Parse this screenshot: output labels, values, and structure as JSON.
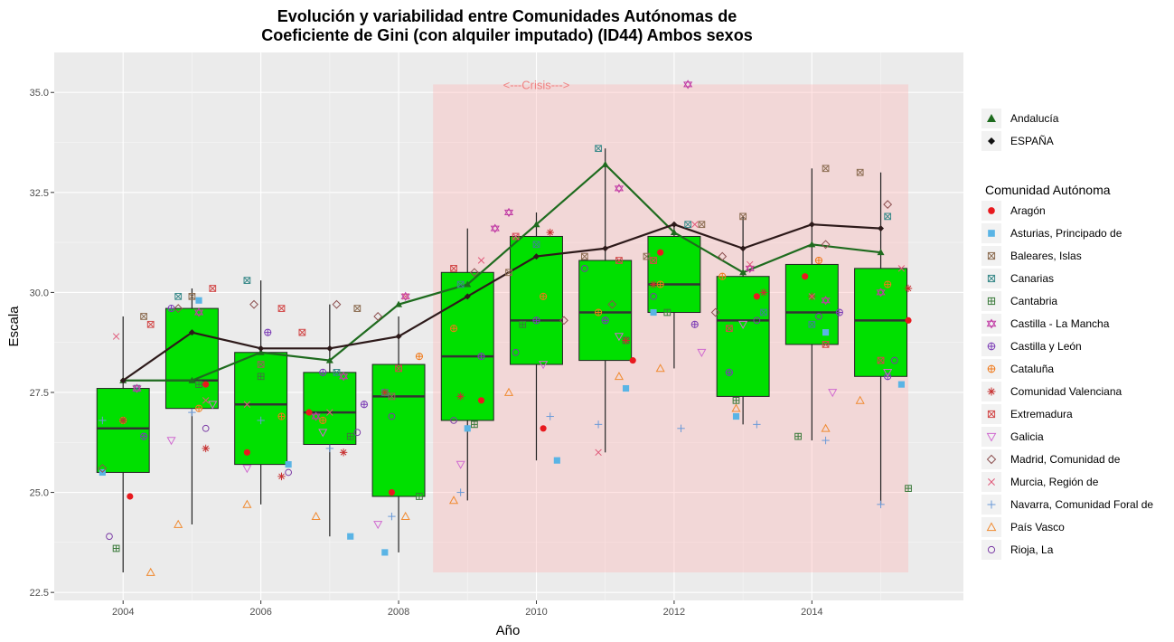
{
  "chart_data": {
    "type": "boxplot",
    "title": [
      "Evolución y variabilidad entre Comunidades Autónomas de",
      "Coeficiente de Gini (con alquiler imputado) (ID44) Ambos sexos"
    ],
    "xlabel": "Año",
    "ylabel": "Escala",
    "xlim": [
      2003.0,
      2016.2
    ],
    "ylim": [
      22.3,
      36.0
    ],
    "x_ticks": [
      2004,
      2006,
      2008,
      2010,
      2012,
      2014
    ],
    "y_ticks": [
      22.5,
      25.0,
      27.5,
      30.0,
      32.5,
      35.0
    ],
    "y_tick_labels": [
      "22.5",
      "25.0",
      "27.5",
      "30.0",
      "32.5",
      "35.0"
    ],
    "grid": true,
    "crisis": {
      "x0": 2008.5,
      "x1": 2015.4,
      "y0": 23.0,
      "y1": 35.2,
      "label": "<---Crisis--->",
      "label_x": 2010.0,
      "label_y": 35.2
    },
    "boxes": [
      {
        "year": 2004,
        "q1": 25.5,
        "median": 26.6,
        "q3": 27.6,
        "low": 23.0,
        "high": 29.4
      },
      {
        "year": 2005,
        "q1": 27.1,
        "median": 27.8,
        "q3": 29.6,
        "low": 24.2,
        "high": 30.1
      },
      {
        "year": 2006,
        "q1": 25.7,
        "median": 27.2,
        "q3": 28.5,
        "low": 24.7,
        "high": 30.3
      },
      {
        "year": 2007,
        "q1": 26.2,
        "median": 27.0,
        "q3": 28.0,
        "low": 23.9,
        "high": 29.7
      },
      {
        "year": 2008,
        "q1": 24.9,
        "median": 27.4,
        "q3": 28.2,
        "low": 23.5,
        "high": 29.4
      },
      {
        "year": 2009,
        "q1": 26.8,
        "median": 28.4,
        "q3": 30.5,
        "low": 24.8,
        "high": 31.6
      },
      {
        "year": 2010,
        "q1": 28.2,
        "median": 29.3,
        "q3": 31.4,
        "low": 25.8,
        "high": 32.0
      },
      {
        "year": 2011,
        "q1": 28.3,
        "median": 29.5,
        "q3": 30.8,
        "low": 26.0,
        "high": 33.6
      },
      {
        "year": 2012,
        "q1": 29.5,
        "median": 30.2,
        "q3": 31.4,
        "low": 28.1,
        "high": 31.7
      },
      {
        "year": 2013,
        "q1": 27.4,
        "median": 29.3,
        "q3": 30.4,
        "low": 26.7,
        "high": 31.9
      },
      {
        "year": 2014,
        "q1": 28.7,
        "median": 29.5,
        "q3": 30.7,
        "low": 26.3,
        "high": 33.1
      },
      {
        "year": 2015,
        "q1": 27.9,
        "median": 29.3,
        "q3": 30.6,
        "low": 24.7,
        "high": 33.0
      }
    ],
    "lines": [
      {
        "name": "Andalucía",
        "color": "#1e6b1e",
        "marker": "triangle",
        "x": [
          2004,
          2005,
          2006,
          2007,
          2008,
          2009,
          2010,
          2011,
          2012,
          2013,
          2014,
          2015
        ],
        "y": [
          27.8,
          27.8,
          28.5,
          28.3,
          29.7,
          30.2,
          31.7,
          33.2,
          31.5,
          30.5,
          31.2,
          31.0
        ]
      },
      {
        "name": "ESPAÑA",
        "color": "#2d1a1a",
        "marker": "diamond",
        "x": [
          2004,
          2005,
          2006,
          2007,
          2008,
          2009,
          2010,
          2011,
          2012,
          2013,
          2014,
          2015
        ],
        "y": [
          27.8,
          29.0,
          28.6,
          28.6,
          28.9,
          29.9,
          30.9,
          31.1,
          31.7,
          31.1,
          31.7,
          31.6
        ]
      }
    ],
    "regions": [
      {
        "name": "Aragón",
        "color": "#e8191e",
        "shape": "dot",
        "x": [
          2004.1,
          2005.2,
          2005.8,
          2006.7,
          2007.9,
          2009.2,
          2010.1,
          2011.4,
          2011.8,
          2013.2,
          2013.9,
          2015.4
        ],
        "y": [
          24.9,
          27.7,
          26.0,
          27.0,
          25.0,
          27.3,
          26.6,
          28.3,
          31.0,
          29.9,
          30.4,
          29.3
        ]
      },
      {
        "name": "Asturias, Principado de",
        "color": "#5ab4e5",
        "shape": "square",
        "x": [
          2003.7,
          2005.1,
          2006.4,
          2007.3,
          2007.8,
          2009.0,
          2010.3,
          2011.3,
          2011.7,
          2012.9,
          2014.2,
          2015.3
        ],
        "y": [
          25.5,
          29.8,
          25.7,
          23.9,
          23.5,
          26.6,
          25.8,
          27.6,
          29.5,
          26.9,
          29.0,
          27.7
        ]
      },
      {
        "name": "Baleares, Islas",
        "color": "#8c6d52",
        "shape": "boxx",
        "x": [
          2004.3,
          2005.0,
          2006.0,
          2007.4,
          2007.9,
          2009.6,
          2010.7,
          2011.6,
          2012.4,
          2013.0,
          2014.2,
          2014.7
        ],
        "y": [
          29.4,
          29.9,
          28.2,
          29.6,
          27.4,
          30.5,
          30.9,
          30.9,
          31.7,
          31.9,
          33.1,
          33.0
        ]
      },
      {
        "name": "Canarias",
        "color": "#3a8a8a",
        "shape": "boxx",
        "x": [
          2004.2,
          2004.8,
          2005.8,
          2007.1,
          2007.8,
          2008.9,
          2010.0,
          2010.9,
          2012.2,
          2013.3,
          2014.0,
          2015.1
        ],
        "y": [
          27.6,
          29.9,
          30.3,
          28.0,
          27.5,
          30.2,
          31.2,
          33.6,
          31.7,
          29.5,
          29.2,
          31.9
        ]
      },
      {
        "name": "Cantabria",
        "color": "#3a7a3a",
        "shape": "boxplus",
        "x": [
          2003.9,
          2005.1,
          2006.0,
          2007.3,
          2008.3,
          2009.1,
          2009.8,
          2011.3,
          2011.9,
          2012.9,
          2013.8,
          2015.4
        ],
        "y": [
          23.6,
          27.7,
          27.9,
          26.4,
          24.9,
          26.7,
          29.2,
          28.8,
          29.5,
          27.3,
          26.4,
          25.1
        ]
      },
      {
        "name": "Castilla - La Mancha",
        "color": "#c13ca5",
        "shape": "star",
        "x": [
          2004.2,
          2005.1,
          2006.8,
          2007.2,
          2008.1,
          2009.4,
          2009.6,
          2011.2,
          2012.2,
          2013.1,
          2014.2,
          2015.0
        ],
        "y": [
          27.6,
          29.5,
          26.9,
          27.9,
          29.9,
          31.6,
          32.0,
          32.6,
          35.2,
          30.6,
          29.8,
          30.0
        ]
      },
      {
        "name": "Castilla y León",
        "color": "#7a3ab5",
        "shape": "circplus",
        "x": [
          2004.3,
          2004.7,
          2006.1,
          2006.9,
          2007.5,
          2009.2,
          2010.0,
          2011.0,
          2012.3,
          2012.8,
          2014.4,
          2015.1
        ],
        "y": [
          26.4,
          29.6,
          29.0,
          28.0,
          27.2,
          28.4,
          29.3,
          29.3,
          29.2,
          28.0,
          29.5,
          27.9
        ]
      },
      {
        "name": "Cataluña",
        "color": "#f07818",
        "shape": "circplus",
        "x": [
          2004.0,
          2005.1,
          2006.3,
          2006.9,
          2008.3,
          2008.8,
          2010.1,
          2010.9,
          2011.8,
          2012.7,
          2014.1,
          2015.1
        ],
        "y": [
          26.8,
          27.1,
          26.9,
          26.8,
          28.4,
          29.1,
          29.9,
          29.5,
          30.2,
          30.4,
          30.8,
          30.2
        ]
      },
      {
        "name": "Comunidad Valenciana",
        "color": "#c73131",
        "shape": "asterisk",
        "x": [
          2004.0,
          2005.2,
          2006.3,
          2007.2,
          2007.8,
          2008.9,
          2010.2,
          2011.3,
          2011.7,
          2013.3,
          2014.0,
          2015.4
        ],
        "y": [
          26.8,
          26.1,
          25.4,
          26.0,
          27.5,
          27.4,
          31.5,
          28.8,
          30.2,
          30.0,
          29.9,
          30.1
        ]
      },
      {
        "name": "Extremadura",
        "color": "#d24a4a",
        "shape": "boxx",
        "x": [
          2004.4,
          2005.3,
          2006.3,
          2006.6,
          2008.0,
          2008.8,
          2009.7,
          2011.2,
          2011.7,
          2012.8,
          2014.2,
          2015.0
        ],
        "y": [
          29.2,
          30.1,
          29.6,
          29.0,
          28.1,
          30.6,
          31.4,
          30.8,
          30.8,
          29.1,
          28.7,
          28.3
        ]
      },
      {
        "name": "Galicia",
        "color": "#d06ad0",
        "shape": "tridown",
        "x": [
          2004.7,
          2005.3,
          2005.8,
          2006.9,
          2007.7,
          2008.9,
          2010.1,
          2011.2,
          2012.4,
          2013.0,
          2014.3,
          2015.1
        ],
        "y": [
          26.3,
          27.2,
          25.6,
          26.5,
          24.2,
          25.7,
          28.2,
          28.9,
          28.5,
          29.2,
          27.5,
          28.0
        ]
      },
      {
        "name": "Madrid, Comunidad de",
        "color": "#8c5050",
        "shape": "diamond",
        "x": [
          2003.7,
          2004.8,
          2005.9,
          2007.1,
          2007.7,
          2009.1,
          2010.4,
          2011.1,
          2012.6,
          2012.7,
          2014.2,
          2015.1
        ],
        "y": [
          25.6,
          29.6,
          29.7,
          29.7,
          29.4,
          30.5,
          29.3,
          29.7,
          29.5,
          30.9,
          31.2,
          32.2
        ]
      },
      {
        "name": "Murcia, Región de",
        "color": "#e05a7a",
        "shape": "cross",
        "x": [
          2003.9,
          2005.2,
          2005.8,
          2007.0,
          2008.1,
          2009.2,
          2009.7,
          2010.9,
          2012.3,
          2013.1,
          2014.0,
          2015.3
        ],
        "y": [
          28.9,
          27.3,
          27.2,
          27.0,
          29.9,
          30.8,
          31.4,
          26.0,
          31.7,
          30.7,
          29.9,
          30.6
        ]
      },
      {
        "name": "Navarra, Comunidad Foral de",
        "color": "#6a9ad8",
        "shape": "plus",
        "x": [
          2003.7,
          2005.0,
          2006.0,
          2007.0,
          2007.9,
          2008.9,
          2010.2,
          2010.9,
          2012.1,
          2013.2,
          2014.2,
          2015.0
        ],
        "y": [
          26.8,
          27.0,
          26.8,
          26.1,
          24.4,
          25.0,
          26.9,
          26.7,
          26.6,
          26.7,
          26.3,
          24.7
        ]
      },
      {
        "name": "País Vasco",
        "color": "#f08a30",
        "shape": "triangle",
        "x": [
          2004.4,
          2004.8,
          2005.8,
          2006.8,
          2008.1,
          2008.8,
          2009.6,
          2011.2,
          2011.8,
          2012.9,
          2014.2,
          2014.7
        ],
        "y": [
          23.0,
          24.2,
          24.7,
          24.4,
          24.4,
          24.8,
          27.5,
          27.9,
          28.1,
          27.1,
          26.6,
          27.3
        ]
      },
      {
        "name": "Rioja, La",
        "color": "#7a3aa5",
        "shape": "circle",
        "x": [
          2003.8,
          2005.2,
          2006.4,
          2007.4,
          2007.9,
          2008.8,
          2009.7,
          2010.7,
          2011.7,
          2013.2,
          2014.1,
          2015.2
        ],
        "y": [
          23.9,
          26.6,
          25.5,
          26.5,
          26.9,
          26.8,
          28.5,
          30.6,
          29.9,
          29.3,
          29.4,
          28.3
        ]
      }
    ],
    "legend_top": [
      {
        "name": "Andalucía",
        "marker": "triangle",
        "color": "#1e6b1e"
      },
      {
        "name": "ESPAÑA",
        "marker": "diamond",
        "color": "#111111"
      }
    ],
    "legend_title": "Comunidad Autónoma",
    "box_fill": "#00e000",
    "panel_bg": "#ebebeb",
    "crisis_fill": "#ffb3b3"
  }
}
